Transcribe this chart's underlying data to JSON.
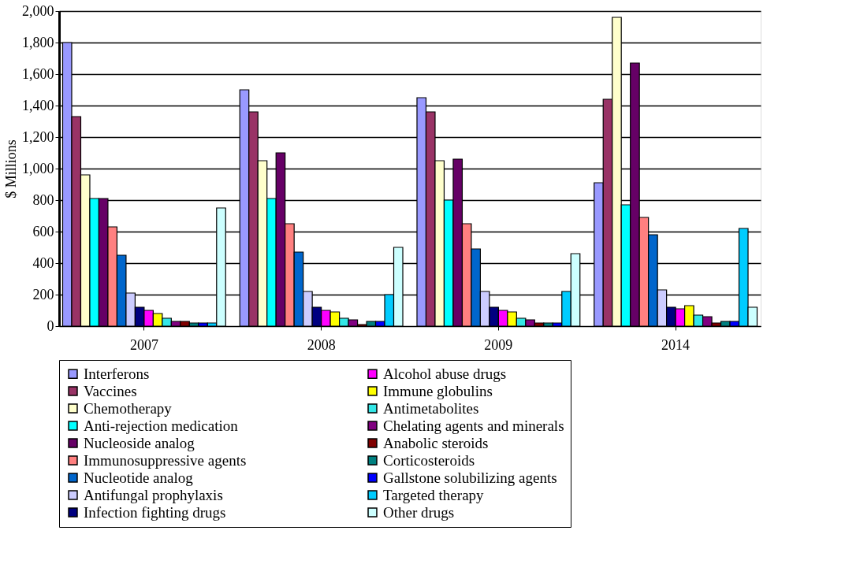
{
  "chart_data": {
    "type": "bar",
    "ylabel": "$ Millions",
    "categories": [
      "2007",
      "2008",
      "2009",
      "2014"
    ],
    "ylim": [
      0,
      2000
    ],
    "yticks": [
      {
        "value": 0,
        "label": "0"
      },
      {
        "value": 200,
        "label": "200"
      },
      {
        "value": 400,
        "label": "400"
      },
      {
        "value": 600,
        "label": "600"
      },
      {
        "value": 800,
        "label": "800"
      },
      {
        "value": 1000,
        "label": "1,000"
      },
      {
        "value": 1200,
        "label": "1,200"
      },
      {
        "value": 1400,
        "label": "1,400"
      },
      {
        "value": 1600,
        "label": "1,600"
      },
      {
        "value": 1800,
        "label": "1,800"
      },
      {
        "value": 2000,
        "label": "2,000"
      }
    ],
    "grid": "y",
    "legend": "bottom",
    "series": [
      {
        "name": "Interferons",
        "color": "#9999ff",
        "values": [
          1800,
          1500,
          1450,
          910
        ]
      },
      {
        "name": "Vaccines",
        "color": "#993366",
        "values": [
          1330,
          1360,
          1360,
          1440
        ]
      },
      {
        "name": "Chemotherapy",
        "color": "#ffffcc",
        "values": [
          960,
          1050,
          1050,
          1960
        ]
      },
      {
        "name": "Anti-rejection medication",
        "color": "#00ffff",
        "values": [
          810,
          810,
          800,
          770
        ]
      },
      {
        "name": "Nucleoside analog",
        "color": "#660066",
        "values": [
          810,
          1100,
          1060,
          1670
        ]
      },
      {
        "name": "Immunosuppressive agents",
        "color": "#ff8080",
        "values": [
          630,
          650,
          650,
          690
        ]
      },
      {
        "name": "Nucleotide analog",
        "color": "#0066cc",
        "values": [
          450,
          470,
          490,
          580
        ]
      },
      {
        "name": "Antifungal prophylaxis",
        "color": "#ccccff",
        "values": [
          210,
          220,
          220,
          230
        ]
      },
      {
        "name": "Infection fighting drugs",
        "color": "#000080",
        "values": [
          120,
          120,
          120,
          120
        ]
      },
      {
        "name": "Alcohol abuse drugs",
        "color": "#ff00ff",
        "values": [
          100,
          100,
          100,
          110
        ]
      },
      {
        "name": "Immune globulins",
        "color": "#ffff00",
        "values": [
          80,
          90,
          90,
          130
        ]
      },
      {
        "name": "Antimetabolites",
        "color": "#33e6e6",
        "values": [
          50,
          50,
          50,
          70
        ]
      },
      {
        "name": "Chelating agents and minerals",
        "color": "#800080",
        "values": [
          30,
          40,
          40,
          60
        ]
      },
      {
        "name": "Anabolic steroids",
        "color": "#800000",
        "values": [
          30,
          10,
          20,
          20
        ]
      },
      {
        "name": "Corticosteroids",
        "color": "#008080",
        "values": [
          20,
          30,
          20,
          30
        ]
      },
      {
        "name": "Gallstone solubilizing agents",
        "color": "#0000ff",
        "values": [
          20,
          30,
          20,
          30
        ]
      },
      {
        "name": "Targeted therapy",
        "color": "#00ccff",
        "values": [
          20,
          200,
          220,
          620
        ]
      },
      {
        "name": "Other drugs",
        "color": "#ccffff",
        "values": [
          750,
          500,
          460,
          120
        ]
      }
    ]
  }
}
